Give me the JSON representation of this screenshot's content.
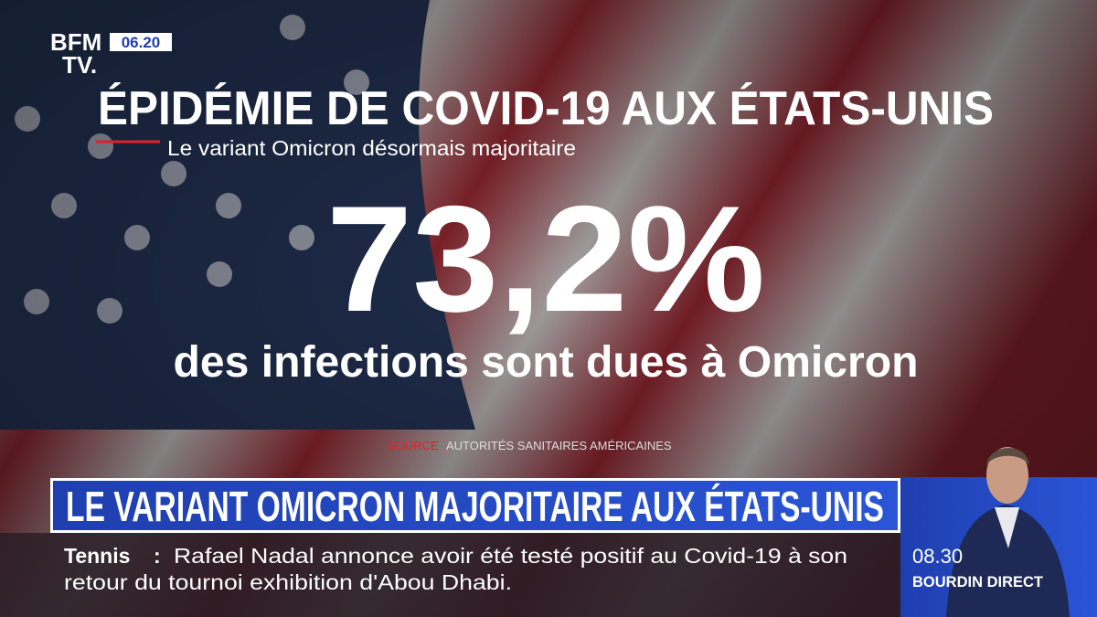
{
  "logo": {
    "line1": "BFM",
    "line2": "TV.",
    "time": "06.20"
  },
  "graphic": {
    "title": "ÉPIDÉMIE DE COVID-19 AUX ÉTATS-UNIS",
    "subtitle": "Le variant Omicron désormais majoritaire",
    "figure": "73,2%",
    "caption": "des infections sont dues à Omicron",
    "source_label": "SOURCE",
    "source": "AUTORITÉS SANITAIRES AMÉRICAINES"
  },
  "banner": {
    "headline": "LE VARIANT OMICRON MAJORITAIRE AUX ÉTATS-UNIS"
  },
  "ticker": {
    "label": "Tennis",
    "separator": ":",
    "line1": "Rafael Nadal annonce avoir été testé positif au Covid-19 à son",
    "line2": "retour du tournoi exhibition d'Abou Dhabi."
  },
  "show": {
    "time": "08.30",
    "name": "BOURDIN DIRECT"
  }
}
